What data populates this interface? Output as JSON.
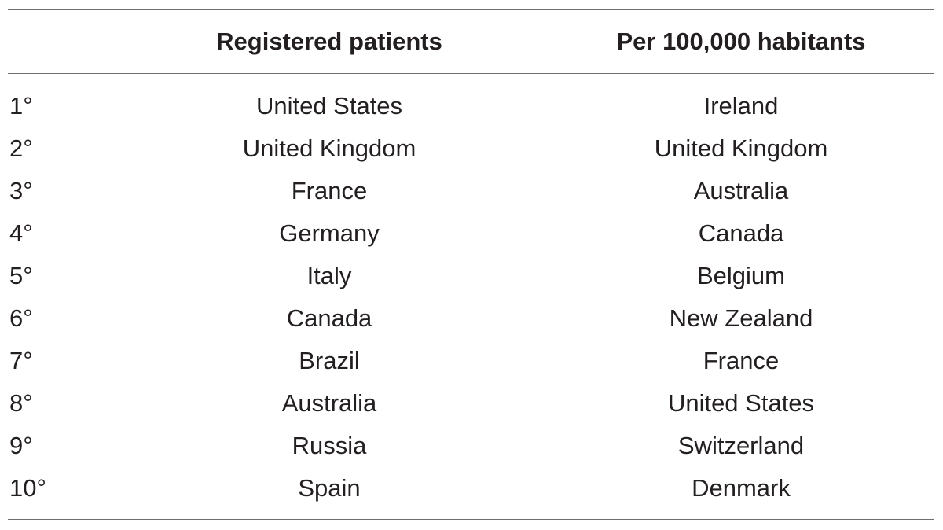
{
  "table": {
    "headers": {
      "rank": "",
      "registered": "Registered patients",
      "per_capita": "Per 100,000 habitants"
    },
    "rows": [
      {
        "rank": "1°",
        "registered": "United States",
        "per_capita": "Ireland"
      },
      {
        "rank": "2°",
        "registered": "United Kingdom",
        "per_capita": "United Kingdom"
      },
      {
        "rank": "3°",
        "registered": "France",
        "per_capita": "Australia"
      },
      {
        "rank": "4°",
        "registered": "Germany",
        "per_capita": "Canada"
      },
      {
        "rank": "5°",
        "registered": "Italy",
        "per_capita": "Belgium"
      },
      {
        "rank": "6°",
        "registered": "Canada",
        "per_capita": "New Zealand"
      },
      {
        "rank": "7°",
        "registered": "Brazil",
        "per_capita": "France"
      },
      {
        "rank": "8°",
        "registered": "Australia",
        "per_capita": "United States"
      },
      {
        "rank": "9°",
        "registered": "Russia",
        "per_capita": "Switzerland"
      },
      {
        "rank": "10°",
        "registered": "Spain",
        "per_capita": "Denmark"
      }
    ]
  }
}
